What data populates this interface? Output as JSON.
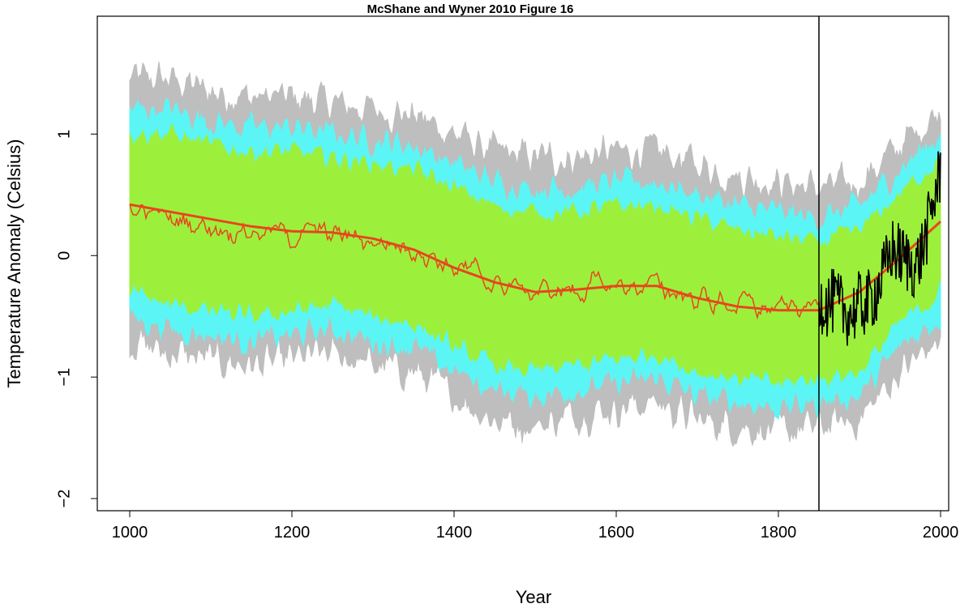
{
  "chart_data": {
    "type": "line",
    "title": "McShane and Wyner 2010 Figure 16",
    "xlabel": "Year",
    "ylabel": "Temperature Anomaly (Celsius)",
    "xlim": [
      1000,
      2000
    ],
    "ylim": [
      -2,
      1
    ],
    "x_ticks": [
      1000,
      1200,
      1400,
      1600,
      1800,
      2000
    ],
    "y_ticks": [
      -2,
      -1,
      0,
      1
    ],
    "grid": false,
    "legend": "none",
    "calibration_boundary_year": 1850,
    "colors": {
      "outer_band": "#bebebe",
      "middle_band": "#5cf5f5",
      "inner_band": "#9cf03c",
      "reconstruction": "#e8461e",
      "smooth": "#e8461e",
      "instrumental": "#000000",
      "boundary": "#000000"
    },
    "series": [
      {
        "x": [
          1000,
          1050,
          1100,
          1150,
          1200,
          1250,
          1300,
          1350,
          1400,
          1450,
          1500,
          1550,
          1600,
          1650,
          1700,
          1750,
          1800,
          1850,
          1900,
          1950,
          2000
        ],
        "values": [
          0.4,
          0.3,
          0.25,
          0.2,
          0.18,
          0.18,
          0.12,
          0.08,
          -0.1,
          -0.22,
          -0.3,
          -0.28,
          -0.25,
          -0.25,
          -0.35,
          -0.4,
          -0.45,
          -0.42,
          -0.4,
          0.02,
          0.3
        ],
        "style": "reconstruction (wiggly)"
      },
      {
        "x": [
          1000,
          1050,
          1100,
          1150,
          1200,
          1250,
          1300,
          1350,
          1400,
          1450,
          1500,
          1550,
          1600,
          1650,
          1700,
          1750,
          1800,
          1850,
          1900,
          1950,
          2000
        ],
        "values": [
          0.42,
          0.36,
          0.3,
          0.24,
          0.2,
          0.19,
          0.14,
          0.05,
          -0.1,
          -0.22,
          -0.3,
          -0.28,
          -0.25,
          -0.25,
          -0.35,
          -0.42,
          -0.45,
          -0.45,
          -0.3,
          -0.02,
          0.28
        ],
        "style": "smoothed reconstruction"
      },
      {
        "x": [
          1850,
          1860,
          1870,
          1880,
          1890,
          1900,
          1910,
          1920,
          1930,
          1940,
          1950,
          1960,
          1970,
          1980,
          1990,
          2000
        ],
        "values": [
          -0.35,
          -0.4,
          -0.38,
          -0.45,
          -0.48,
          -0.4,
          -0.4,
          -0.3,
          -0.15,
          0.05,
          0.0,
          -0.05,
          -0.1,
          0.1,
          0.4,
          0.7
        ],
        "style": "instrumental record"
      },
      {
        "x": [
          1000,
          1050,
          1100,
          1150,
          1200,
          1250,
          1300,
          1350,
          1400,
          1450,
          1500,
          1550,
          1600,
          1650,
          1700,
          1750,
          1800,
          1850,
          1900,
          1950,
          2000
        ],
        "lower": [
          -0.3,
          -0.4,
          -0.45,
          -0.5,
          -0.45,
          -0.4,
          -0.5,
          -0.55,
          -0.75,
          -0.9,
          -0.95,
          -0.9,
          -0.85,
          -0.8,
          -0.95,
          -1.0,
          -1.05,
          -1.0,
          -0.95,
          -0.55,
          -0.3
        ],
        "upper": [
          1.0,
          1.0,
          0.9,
          0.85,
          0.85,
          0.8,
          0.75,
          0.7,
          0.55,
          0.4,
          0.35,
          0.35,
          0.4,
          0.4,
          0.3,
          0.2,
          0.15,
          0.1,
          0.2,
          0.5,
          0.8
        ],
        "style": "inner band"
      },
      {
        "x": [
          1000,
          1050,
          1100,
          1150,
          1200,
          1250,
          1300,
          1350,
          1400,
          1450,
          1500,
          1550,
          1600,
          1650,
          1700,
          1750,
          1800,
          1850,
          1900,
          1950,
          2000
        ],
        "lower": [
          -0.5,
          -0.6,
          -0.65,
          -0.7,
          -0.65,
          -0.6,
          -0.7,
          -0.75,
          -0.95,
          -1.1,
          -1.15,
          -1.1,
          -1.05,
          -1.0,
          -1.15,
          -1.2,
          -1.25,
          -1.2,
          -1.15,
          -0.75,
          -0.5
        ],
        "upper": [
          1.2,
          1.2,
          1.1,
          1.05,
          1.05,
          1.0,
          0.95,
          0.9,
          0.75,
          0.6,
          0.55,
          0.55,
          0.6,
          0.6,
          0.5,
          0.4,
          0.35,
          0.3,
          0.4,
          0.7,
          1.0
        ],
        "style": "middle band"
      },
      {
        "x": [
          1000,
          1050,
          1100,
          1150,
          1200,
          1250,
          1300,
          1350,
          1400,
          1450,
          1500,
          1550,
          1600,
          1650,
          1700,
          1750,
          1800,
          1850,
          1900,
          1950,
          2000
        ],
        "lower": [
          -0.7,
          -0.8,
          -0.85,
          -0.9,
          -0.85,
          -0.8,
          -0.9,
          -0.95,
          -1.15,
          -1.35,
          -1.4,
          -1.3,
          -1.25,
          -1.2,
          -1.35,
          -1.4,
          -1.45,
          -1.4,
          -1.35,
          -0.95,
          -0.7
        ],
        "upper": [
          1.45,
          1.45,
          1.35,
          1.3,
          1.3,
          1.25,
          1.2,
          1.15,
          1.0,
          0.85,
          0.8,
          0.8,
          0.85,
          0.85,
          0.75,
          0.65,
          0.6,
          0.55,
          0.6,
          0.9,
          1.2
        ],
        "style": "outer band"
      }
    ]
  }
}
